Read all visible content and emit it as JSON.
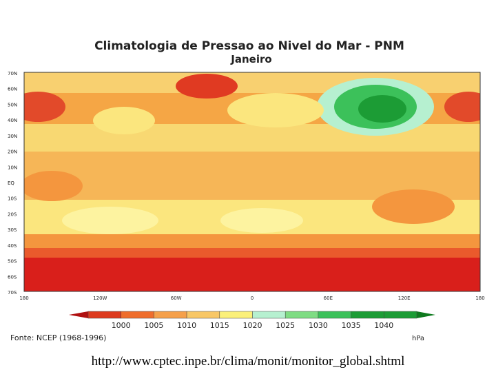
{
  "header": {
    "title": "Climatologia de Pressao ao Nivel do Mar - PNM",
    "subtitle": "Janeiro"
  },
  "map": {
    "lat_labels": [
      "70N",
      "60N",
      "50N",
      "40N",
      "30N",
      "20N",
      "10N",
      "EQ",
      "10S",
      "20S",
      "30S",
      "40S",
      "50S",
      "60S",
      "70S"
    ],
    "lon_labels": [
      "180",
      "120W",
      "60W",
      "0",
      "60E",
      "120E",
      "180"
    ]
  },
  "colorbar": {
    "ticks": [
      1000,
      1005,
      1010,
      1015,
      1020,
      1025,
      1030,
      1035,
      1040
    ],
    "unit": "hPa"
  },
  "source": "Fonte: NCEP (1968-1996)",
  "url": "http://www.cptec.inpe.br/clima/monit/monitor_global.shtml"
}
